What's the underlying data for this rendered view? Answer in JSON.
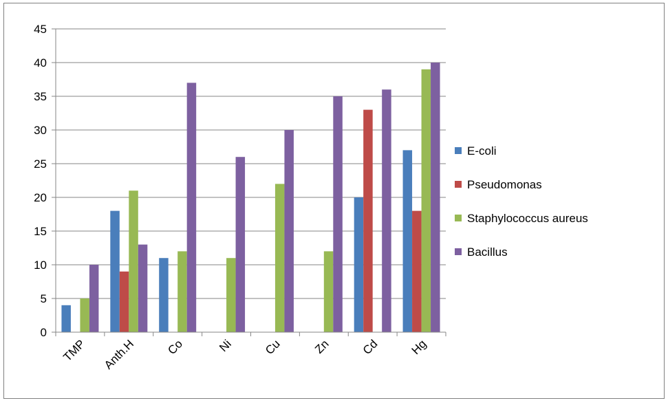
{
  "chart_data": {
    "type": "bar",
    "categories": [
      "TMP",
      "Anth.H",
      "Co",
      "Ni",
      "Cu",
      "Zn",
      "Cd",
      "Hg"
    ],
    "series": [
      {
        "name": "E-coli",
        "color": "#4a7ebb",
        "values": [
          4,
          18,
          11,
          0,
          0,
          0,
          20,
          27
        ]
      },
      {
        "name": "Pseudomonas",
        "color": "#be4b48",
        "values": [
          0,
          9,
          0,
          0,
          0,
          0,
          33,
          18
        ]
      },
      {
        "name": "Staphylococcus aureus",
        "color": "#98b954",
        "values": [
          5,
          21,
          12,
          11,
          22,
          12,
          0,
          39
        ]
      },
      {
        "name": "Bacillus",
        "color": "#7d60a0",
        "values": [
          10,
          13,
          37,
          26,
          30,
          35,
          36,
          40
        ]
      }
    ],
    "yticks": [
      "0",
      "5",
      "10",
      "15",
      "20",
      "25",
      "30",
      "35",
      "40",
      "45"
    ],
    "ylim": [
      0,
      45
    ],
    "grid": true,
    "legend_position": "right",
    "title": "",
    "xlabel": "",
    "ylabel": ""
  }
}
